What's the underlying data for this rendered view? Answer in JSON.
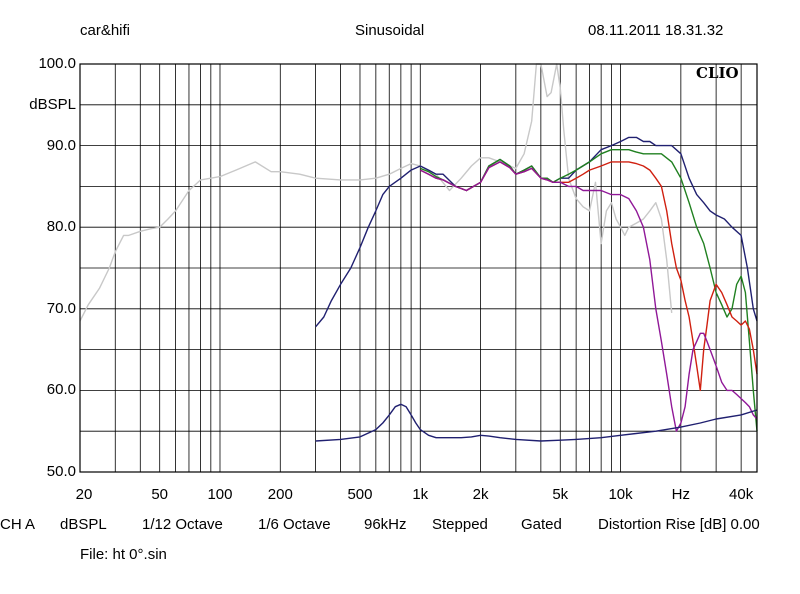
{
  "header": {
    "left": "car&hifi",
    "center": "Sinusoidal",
    "right": "08.11.2011 18.31.32"
  },
  "logo": "CLIO",
  "footer": {
    "items": [
      "CH A",
      "dBSPL",
      "1/12 Octave",
      "1/6 Octave",
      "96kHz",
      "Stepped",
      "Gated",
      "Distortion Rise [dB] 0.00"
    ],
    "file": "File: ht 0°.sin"
  },
  "chart_data": {
    "type": "line",
    "x_scale": "log",
    "xlim": [
      20,
      48000
    ],
    "ylim": [
      50,
      100
    ],
    "ylabel": "dBSPL",
    "grid": true,
    "y_ticks": [
      "100.0",
      "90.0",
      "80.0",
      "70.0",
      "60.0",
      "50.0"
    ],
    "x_ticks": [
      "20",
      "50",
      "100",
      "200",
      "500",
      "1k",
      "2k",
      "5k",
      "10k",
      "Hz",
      "40k"
    ],
    "series": [
      {
        "color": "#c8c8c8",
        "x": [
          20,
          22,
          25,
          28,
          30,
          33,
          35,
          40,
          45,
          50,
          55,
          60,
          70,
          80,
          90,
          100,
          120,
          150,
          180,
          200,
          250,
          300,
          400,
          500,
          600,
          700,
          800,
          900,
          1000,
          1200,
          1400,
          1600,
          1800,
          2000,
          2200,
          2500,
          2800,
          3000,
          3300,
          3600,
          3800,
          4000,
          4300,
          4500,
          4800,
          5000,
          5200,
          5500,
          6000,
          6500,
          7000,
          7500,
          8000,
          8500,
          9000,
          9500,
          10000,
          10500,
          11000,
          12000,
          13000,
          14000,
          15000,
          16000,
          17000,
          18000
        ],
        "y": [
          68.5,
          70.5,
          72.5,
          75,
          77,
          79,
          79,
          79.5,
          79.8,
          80,
          81,
          82,
          84.5,
          85.8,
          86,
          86.2,
          87,
          88,
          86.8,
          86.8,
          86.5,
          86,
          85.8,
          85.8,
          86,
          86.5,
          87.2,
          87.8,
          87.5,
          86.5,
          84.5,
          86,
          87.5,
          88.5,
          88.5,
          88,
          87.5,
          87.2,
          89,
          93,
          100,
          100,
          96,
          96.5,
          100,
          97,
          92,
          86,
          83.5,
          82.5,
          82,
          85.5,
          78,
          82,
          83,
          81,
          80,
          79,
          80,
          80.5,
          81,
          82,
          83,
          81,
          76,
          69.5
        ]
      },
      {
        "color": "#202070",
        "x": [
          300,
          330,
          360,
          400,
          450,
          500,
          550,
          600,
          650,
          700,
          800,
          900,
          1000,
          1100,
          1200,
          1300,
          1500,
          1700,
          2000,
          2200,
          2500,
          2800,
          3000,
          3300,
          3600,
          4000,
          4300,
          4600,
          5000,
          5500,
          6000,
          7000,
          8000,
          9000,
          10000,
          11000,
          12000,
          13000,
          14000,
          15000,
          16000,
          18000,
          20000,
          22000,
          24000,
          26000,
          28000,
          30000,
          33000,
          36000,
          40000,
          43000,
          46000,
          48000
        ],
        "y": [
          67.8,
          69,
          71,
          73,
          75,
          77.5,
          80,
          82,
          84,
          85,
          86,
          87,
          87.5,
          87,
          86.5,
          86.5,
          85,
          84.5,
          85.5,
          87.5,
          88.3,
          87.5,
          86.5,
          87,
          87.5,
          86,
          86,
          85.5,
          86,
          86,
          87,
          88,
          89.5,
          90,
          90.5,
          91,
          91,
          90.5,
          90.5,
          90,
          90,
          90,
          89,
          86,
          84,
          83,
          82,
          81.5,
          81,
          80,
          79,
          75,
          70,
          68.5
        ]
      },
      {
        "color": "#208020",
        "x": [
          1000,
          1100,
          1200,
          1300,
          1500,
          1700,
          2000,
          2200,
          2500,
          2800,
          3000,
          3300,
          3600,
          4000,
          4300,
          4600,
          5000,
          5500,
          6000,
          7000,
          8000,
          9000,
          10000,
          11000,
          12000,
          13000,
          14000,
          15000,
          16000,
          18000,
          20000,
          22000,
          24000,
          26000,
          28000,
          30000,
          32000,
          34000,
          36000,
          38000,
          40000,
          42000,
          44000,
          46000,
          48000
        ],
        "y": [
          87.2,
          86.8,
          86.2,
          85.8,
          85,
          84.5,
          85.5,
          87.5,
          88.3,
          87.5,
          86.5,
          87,
          87.5,
          86,
          86,
          85.5,
          86,
          86.5,
          87,
          88,
          89,
          89.5,
          89.5,
          89.5,
          89.2,
          89,
          89,
          89,
          89,
          88,
          86,
          83,
          80,
          78,
          75,
          72,
          70.5,
          69,
          70,
          73,
          74,
          72,
          66,
          60,
          55
        ]
      },
      {
        "color": "#d02010",
        "x": [
          1000,
          1100,
          1200,
          1300,
          1500,
          1700,
          2000,
          2200,
          2500,
          2800,
          3000,
          3300,
          3600,
          4000,
          4300,
          4600,
          5000,
          5500,
          6000,
          6500,
          7000,
          8000,
          9000,
          10000,
          11000,
          12000,
          13000,
          14000,
          15000,
          16000,
          17000,
          18000,
          19000,
          20000,
          21000,
          22000,
          23000,
          24000,
          25000,
          26000,
          27000,
          28000,
          30000,
          32000,
          34000,
          36000,
          38000,
          40000,
          42000,
          44000,
          46000,
          48000
        ],
        "y": [
          87,
          86.5,
          86,
          85.8,
          85,
          84.5,
          85.5,
          87.3,
          88,
          87.3,
          86.5,
          86.8,
          87.2,
          86,
          85.8,
          85.5,
          85.5,
          85.5,
          86,
          86.5,
          87,
          87.5,
          88,
          88,
          88,
          87.8,
          87.5,
          87,
          86,
          85,
          82,
          78,
          75,
          73.5,
          71,
          69,
          66,
          63,
          60,
          65,
          68,
          71,
          73,
          72,
          70.5,
          69,
          68.5,
          68,
          68.5,
          67.5,
          65,
          62
        ]
      },
      {
        "color": "#901898",
        "x": [
          1000,
          1100,
          1200,
          1300,
          1500,
          1700,
          2000,
          2200,
          2500,
          2800,
          3000,
          3300,
          3600,
          4000,
          4300,
          4600,
          5000,
          5500,
          6000,
          6500,
          7000,
          8000,
          9000,
          10000,
          11000,
          12000,
          13000,
          14000,
          15000,
          16000,
          17000,
          18000,
          19000,
          20000,
          21000,
          22000,
          23000,
          24000,
          25000,
          26000,
          27000,
          28000,
          30000,
          32000,
          34000,
          36000,
          38000,
          40000,
          42000,
          44000,
          46000,
          48000
        ],
        "y": [
          87,
          86.5,
          86,
          85.8,
          85,
          84.5,
          85.5,
          87.3,
          88,
          87.3,
          86.5,
          86.8,
          87.2,
          86,
          85.8,
          85.5,
          85.5,
          85,
          85,
          84.5,
          84.5,
          84.5,
          84,
          84,
          83.5,
          82,
          80,
          76,
          70,
          66,
          62,
          58,
          55,
          56,
          58,
          62,
          65,
          66,
          67,
          67,
          66,
          65,
          63,
          61,
          60,
          60,
          59.5,
          59,
          58.5,
          58,
          57,
          56.5
        ]
      },
      {
        "color": "#202070",
        "x": [
          300,
          400,
          500,
          600,
          650,
          700,
          750,
          800,
          850,
          900,
          950,
          1000,
          1100,
          1200,
          1400,
          1600,
          1800,
          2000,
          2200,
          2500,
          3000,
          4000,
          5000,
          6000,
          8000,
          10000,
          15000,
          20000,
          25000,
          30000,
          40000,
          48000
        ],
        "y": [
          53.8,
          54,
          54.3,
          55.2,
          56,
          57,
          58,
          58.3,
          58,
          57,
          56,
          55.2,
          54.5,
          54.2,
          54.2,
          54.2,
          54.3,
          54.5,
          54.4,
          54.2,
          54,
          53.8,
          53.9,
          54,
          54.2,
          54.5,
          55,
          55.5,
          56,
          56.5,
          57,
          57.6
        ]
      }
    ]
  }
}
